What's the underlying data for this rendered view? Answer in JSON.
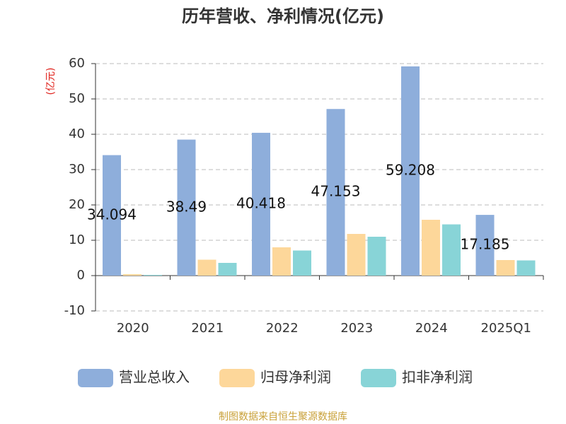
{
  "chart_data": {
    "type": "bar",
    "title": "历年营收、净利情况(亿元)",
    "y_label": "(亿元)",
    "categories": [
      "2020",
      "2021",
      "2022",
      "2023",
      "2024",
      "2025Q1"
    ],
    "series": [
      {
        "name": "营业总收入",
        "color": "#8eaedb",
        "values": [
          34.094,
          38.49,
          40.418,
          47.153,
          59.208,
          17.185
        ],
        "show_labels": true
      },
      {
        "name": "归母净利润",
        "color": "#fdd79a",
        "values": [
          0.4,
          4.5,
          8.0,
          11.8,
          15.8,
          4.4
        ]
      },
      {
        "name": "扣非净利润",
        "color": "#88d4d7",
        "values": [
          0.2,
          3.6,
          7.1,
          11.0,
          14.5,
          4.3
        ]
      }
    ],
    "ylim": [
      -10,
      60
    ],
    "yticks": [
      -10,
      0,
      10,
      20,
      30,
      40,
      50,
      60
    ],
    "grid": true,
    "source": "制图数据来自恒生聚源数据库"
  }
}
